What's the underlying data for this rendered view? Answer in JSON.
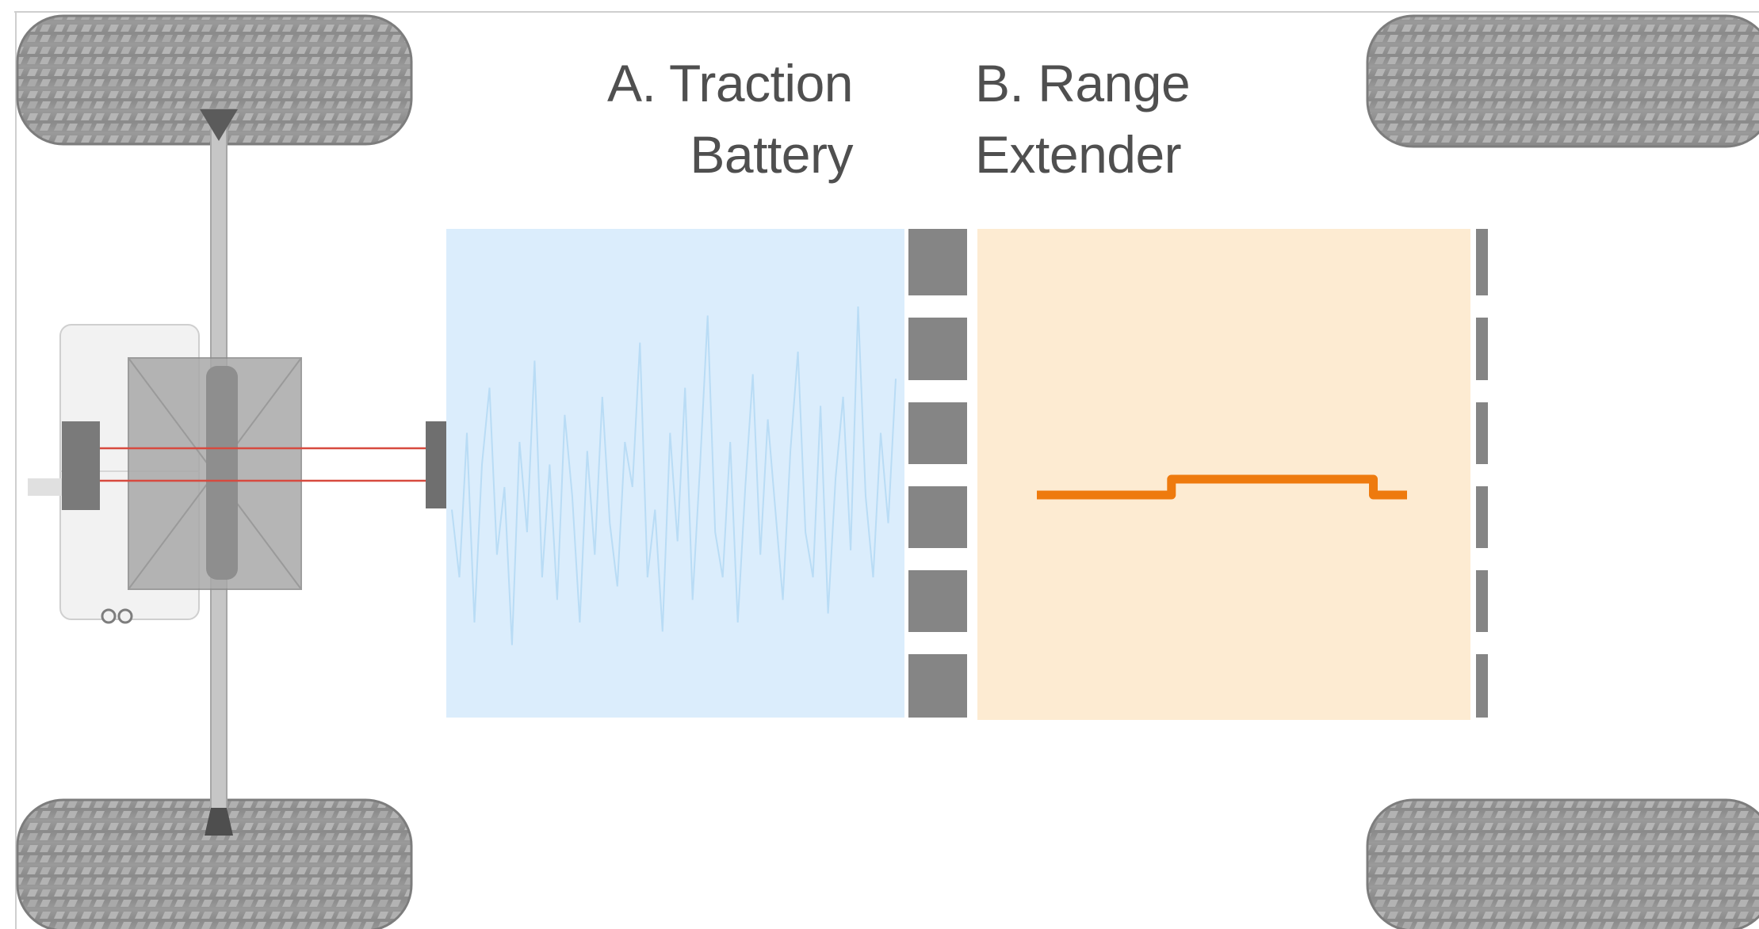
{
  "labels": {
    "a_line1": "A. Traction",
    "a_line2": "Battery",
    "b_line1": "B. Range",
    "b_line2": "Extender"
  },
  "colors": {
    "battery_fill": "#dbedfc",
    "battery_trace": "#b9dcf5",
    "range_fill": "#fdebd2",
    "range_trace": "#ee7a0e",
    "connector": "#858585",
    "tire": "#8f8f8f",
    "text": "#4f4f4f"
  },
  "battery_signal": [
    0.45,
    0.3,
    0.62,
    0.2,
    0.55,
    0.72,
    0.35,
    0.5,
    0.15,
    0.6,
    0.4,
    0.78,
    0.3,
    0.55,
    0.25,
    0.66,
    0.48,
    0.2,
    0.58,
    0.35,
    0.7,
    0.42,
    0.28,
    0.6,
    0.5,
    0.82,
    0.3,
    0.45,
    0.18,
    0.62,
    0.38,
    0.72,
    0.25,
    0.55,
    0.88,
    0.4,
    0.3,
    0.6,
    0.2,
    0.5,
    0.75,
    0.35,
    0.65,
    0.45,
    0.25,
    0.58,
    0.8,
    0.4,
    0.3,
    0.68,
    0.22,
    0.52,
    0.7,
    0.36,
    0.9,
    0.48,
    0.3,
    0.62,
    0.42,
    0.74
  ],
  "range_signal": [
    0.35,
    0.35,
    0.35,
    0.35,
    0.55,
    0.55,
    0.55,
    0.55,
    0.55,
    0.55,
    0.35,
    0.35
  ]
}
